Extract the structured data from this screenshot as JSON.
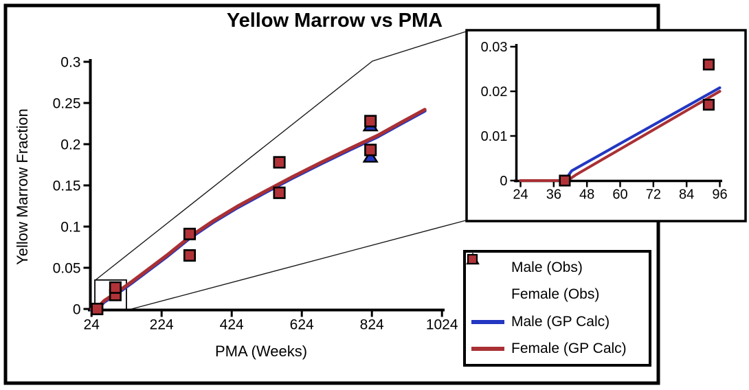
{
  "title": "Yellow Marrow vs PMA",
  "colors": {
    "male": "#2337C2",
    "female_line": "#A93034",
    "female_marker": "#B13338",
    "axis": "#000000",
    "background": "#FFFFFF",
    "connector": "#1A1A1A"
  },
  "chart_data": [
    {
      "type": "scatter",
      "name": "main",
      "title": "Yellow Marrow vs PMA",
      "xlabel": "PMA (Weeks)",
      "ylabel": "Yellow Marrow Fraction",
      "xlim": [
        24,
        1024
      ],
      "ylim": [
        0,
        0.3
      ],
      "grid": false,
      "xticks": [
        {
          "v": 24,
          "label": "24"
        },
        {
          "v": 224,
          "label": "224"
        },
        {
          "v": 424,
          "label": "424"
        },
        {
          "v": 624,
          "label": "624"
        },
        {
          "v": 824,
          "label": "824"
        },
        {
          "v": 1024,
          "label": "1024"
        }
      ],
      "yticks": [
        {
          "v": 0,
          "label": "0"
        },
        {
          "v": 0.05,
          "label": "0.05"
        },
        {
          "v": 0.1,
          "label": "0.1"
        },
        {
          "v": 0.15,
          "label": "0.15"
        },
        {
          "v": 0.2,
          "label": "0.2"
        },
        {
          "v": 0.25,
          "label": "0.25"
        },
        {
          "v": 0.3,
          "label": "0.3"
        }
      ],
      "series": [
        {
          "name": "Male (GP Calc)",
          "kind": "line",
          "color_key": "male",
          "points": [
            [
              24,
              0
            ],
            [
              38,
              0
            ],
            [
              44,
              0.003
            ],
            [
              60,
              0.01
            ],
            [
              96,
              0.02
            ],
            [
              140,
              0.0335
            ],
            [
              190,
              0.0495
            ],
            [
              240,
              0.0655
            ],
            [
              304,
              0.0875
            ],
            [
              370,
              0.1065
            ],
            [
              440,
              0.1245
            ],
            [
              520,
              0.143
            ],
            [
              600,
              0.161
            ],
            [
              680,
              0.178
            ],
            [
              760,
              0.1945
            ],
            [
              840,
              0.2105
            ],
            [
              910,
              0.227
            ],
            [
              975,
              0.242
            ]
          ]
        },
        {
          "name": "Female (GP Calc)",
          "kind": "line",
          "color_key": "female_line",
          "points": [
            [
              24,
              0
            ],
            [
              38,
              0
            ],
            [
              44,
              0.003
            ],
            [
              60,
              0.01
            ],
            [
              96,
              0.02
            ],
            [
              140,
              0.0335
            ],
            [
              190,
              0.0495
            ],
            [
              240,
              0.0655
            ],
            [
              304,
              0.0875
            ],
            [
              370,
              0.1065
            ],
            [
              440,
              0.1245
            ],
            [
              520,
              0.143
            ],
            [
              600,
              0.161
            ],
            [
              680,
              0.178
            ],
            [
              760,
              0.1945
            ],
            [
              840,
              0.2105
            ],
            [
              910,
              0.227
            ],
            [
              975,
              0.242
            ]
          ]
        },
        {
          "name": "Male (Obs)",
          "kind": "scatter",
          "marker": "triangle",
          "color_key": "male",
          "points": [
            [
              820,
              0.2225
            ],
            [
              820,
              0.1845
            ]
          ]
        },
        {
          "name": "Female (Obs)",
          "kind": "scatter",
          "marker": "square",
          "color_key": "female_marker",
          "points": [
            [
              40,
              0
            ],
            [
              92,
              0.017
            ],
            [
              92,
              0.026
            ],
            [
              304,
              0.065
            ],
            [
              304,
              0.091
            ],
            [
              560,
              0.141
            ],
            [
              560,
              0.178
            ],
            [
              820,
              0.193
            ],
            [
              820,
              0.228
            ]
          ]
        }
      ],
      "zoom_region": {
        "x": [
          33.5,
          123.5
        ],
        "y": [
          0,
          0.0352
        ]
      }
    },
    {
      "type": "scatter",
      "name": "inset",
      "title": "",
      "xlabel": "",
      "ylabel": "",
      "xlim": [
        24,
        96
      ],
      "ylim": [
        0,
        0.03
      ],
      "grid": false,
      "xticks": [
        {
          "v": 24,
          "label": "24"
        },
        {
          "v": 36,
          "label": "36"
        },
        {
          "v": 48,
          "label": "48"
        },
        {
          "v": 60,
          "label": "60"
        },
        {
          "v": 72,
          "label": "72"
        },
        {
          "v": 84,
          "label": "84"
        },
        {
          "v": 96,
          "label": "96"
        }
      ],
      "yticks": [
        {
          "v": 0,
          "label": "0"
        },
        {
          "v": 0.01,
          "label": "0.01"
        },
        {
          "v": 0.02,
          "label": "0.02"
        },
        {
          "v": 0.03,
          "label": "0.03"
        }
      ],
      "series": [
        {
          "name": "Male (GP Calc)",
          "kind": "line",
          "color_key": "male",
          "points": [
            [
              24,
              0
            ],
            [
              40,
              0
            ],
            [
              42.5,
              0.0022
            ],
            [
              96,
              0.0208
            ]
          ]
        },
        {
          "name": "Female (GP Calc)",
          "kind": "line",
          "color_key": "female_line",
          "points": [
            [
              24,
              0
            ],
            [
              41,
              0
            ],
            [
              44,
              0.0013
            ],
            [
              96,
              0.02
            ]
          ]
        },
        {
          "name": "Female (Obs)",
          "kind": "scatter",
          "marker": "square",
          "color_key": "female_marker",
          "points": [
            [
              40,
              0
            ],
            [
              92,
              0.017
            ],
            [
              92,
              0.026
            ]
          ]
        }
      ]
    }
  ],
  "legend": {
    "items": [
      {
        "label": "Male (Obs)",
        "marker": "triangle",
        "color_key": "male"
      },
      {
        "label": "Female (Obs)",
        "marker": "square",
        "color_key": "female_marker"
      },
      {
        "label": "Male (GP Calc)",
        "marker": "line",
        "color_key": "male"
      },
      {
        "label": "Female (GP Calc)",
        "marker": "line",
        "color_key": "female_line"
      }
    ]
  }
}
